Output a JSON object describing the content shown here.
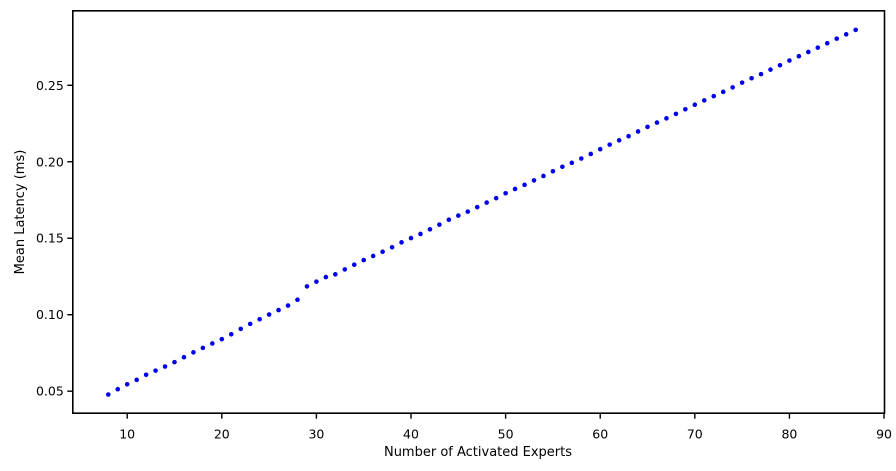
{
  "figure": {
    "background": "#ffffff",
    "spine_color": "#000000",
    "tick_color": "#000000"
  },
  "chart_data": {
    "type": "scatter",
    "title": "",
    "xlabel": "Number of Activated Experts",
    "ylabel": "Mean Latency (ms)",
    "grid": false,
    "legend": null,
    "marker": {
      "shape": "circle",
      "color": "#0000ee",
      "radius": 2.3
    },
    "xlim": [
      4.25,
      90.05
    ],
    "ylim": [
      0.0356,
      0.2987
    ],
    "x_ticks": [
      10,
      20,
      30,
      40,
      50,
      60,
      70,
      80,
      90
    ],
    "x_tick_labels": [
      "10",
      "20",
      "30",
      "40",
      "50",
      "60",
      "70",
      "80",
      "90"
    ],
    "y_ticks": [
      0.05,
      0.1,
      0.15,
      0.2,
      0.25
    ],
    "y_tick_labels": [
      "0.05",
      "0.10",
      "0.15",
      "0.20",
      "0.25"
    ],
    "x": [
      8,
      9,
      10,
      11,
      12,
      13,
      14,
      15,
      16,
      17,
      18,
      19,
      20,
      21,
      22,
      23,
      24,
      25,
      26,
      27,
      28,
      29,
      30,
      31,
      32,
      33,
      34,
      35,
      36,
      37,
      38,
      39,
      40,
      41,
      42,
      43,
      44,
      45,
      46,
      47,
      48,
      49,
      50,
      51,
      52,
      53,
      54,
      55,
      56,
      57,
      58,
      59,
      60,
      61,
      62,
      63,
      64,
      65,
      66,
      67,
      68,
      69,
      70,
      71,
      72,
      73,
      74,
      75,
      76,
      77,
      78,
      79,
      80,
      81,
      82,
      83,
      84,
      85,
      86,
      87
    ],
    "y": [
      0.0478,
      0.0513,
      0.0545,
      0.0574,
      0.0607,
      0.0634,
      0.0661,
      0.069,
      0.0722,
      0.0754,
      0.0783,
      0.0812,
      0.084,
      0.0872,
      0.0907,
      0.094,
      0.097,
      0.1001,
      0.103,
      0.106,
      0.1098,
      0.1185,
      0.1216,
      0.1246,
      0.1264,
      0.1296,
      0.1327,
      0.1357,
      0.1384,
      0.1412,
      0.1441,
      0.1473,
      0.1501,
      0.1528,
      0.1558,
      0.1589,
      0.1621,
      0.1648,
      0.1674,
      0.1703,
      0.1733,
      0.1762,
      0.1794,
      0.1822,
      0.1849,
      0.1878,
      0.1907,
      0.1938,
      0.1967,
      0.1993,
      0.2021,
      0.2051,
      0.2082,
      0.2112,
      0.214,
      0.2167,
      0.2198,
      0.2228,
      0.2256,
      0.2284,
      0.2313,
      0.2343,
      0.2373,
      0.2401,
      0.2429,
      0.2457,
      0.2486,
      0.2517,
      0.2546,
      0.2573,
      0.2602,
      0.2631,
      0.2662,
      0.269,
      0.2718,
      0.2746,
      0.2775,
      0.2805,
      0.2833,
      0.2862
    ]
  }
}
